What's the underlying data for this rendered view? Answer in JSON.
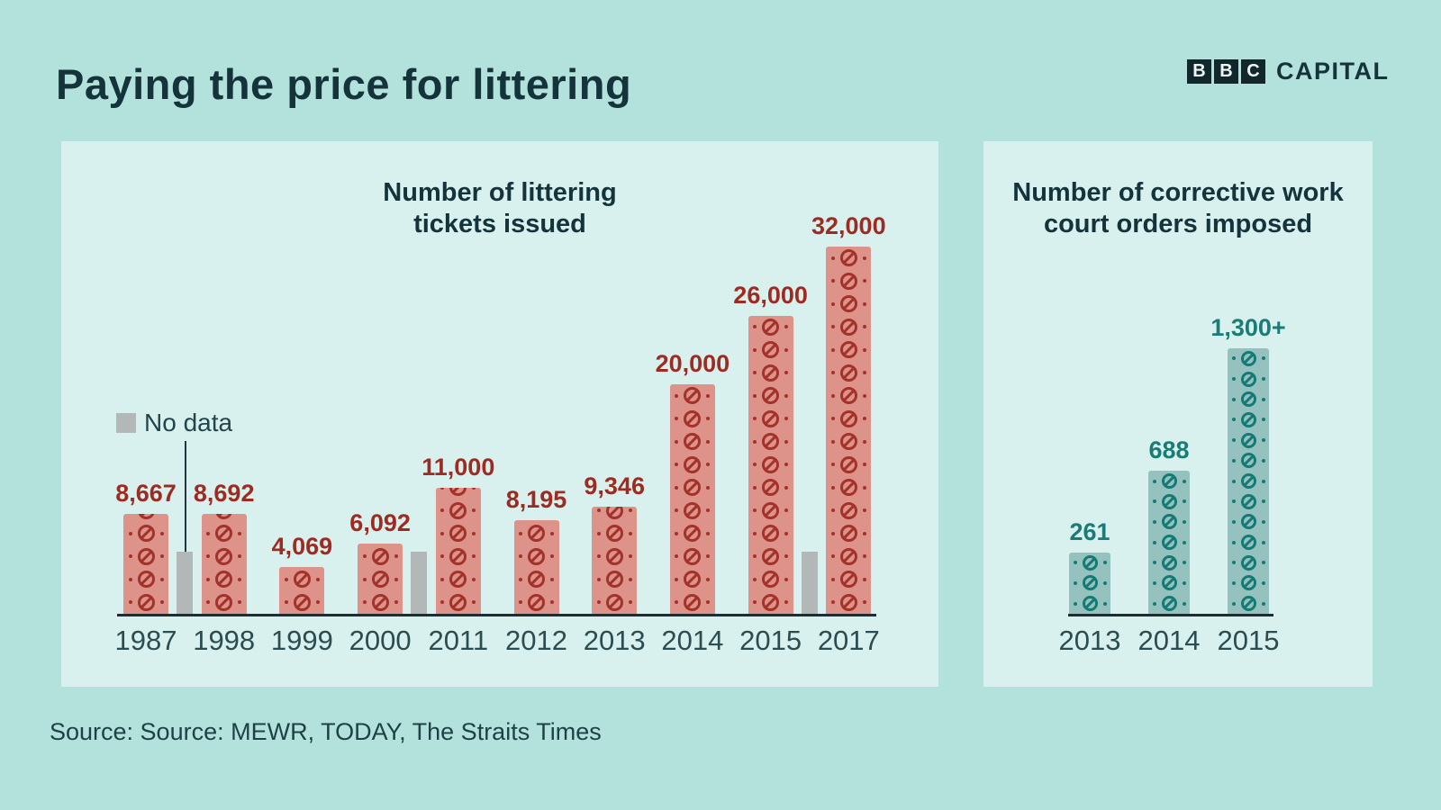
{
  "page": {
    "title": "Paying the price for littering",
    "brand": {
      "blocks": [
        "B",
        "B",
        "C"
      ],
      "name": "CAPITAL"
    },
    "source": "Source: Source: MEWR, TODAY, The Straits Times"
  },
  "chart_data": [
    {
      "type": "bar",
      "title": "Number of littering tickets issued",
      "title_lines": [
        "Number of littering",
        "tickets issued"
      ],
      "categories": [
        "1987",
        "1998",
        "1999",
        "2000",
        "2011",
        "2012",
        "2013",
        "2014",
        "2015",
        "2017"
      ],
      "values": [
        8667,
        8692,
        4069,
        6092,
        11000,
        8195,
        9346,
        20000,
        26000,
        32000
      ],
      "value_labels": [
        "8,667",
        "8,692",
        "4,069",
        "6,092",
        "11,000",
        "8,195",
        "9,346",
        "20,000",
        "26,000",
        "32,000"
      ],
      "unit_per_ticket": 2000,
      "icon": "no-entry-ticket",
      "legend": {
        "label": "No data",
        "color": "#b2b8b7",
        "position": "left-middle"
      },
      "no_data_between": [
        [
          0,
          1
        ],
        [
          3,
          4
        ],
        [
          8,
          9
        ]
      ],
      "colors": {
        "ticket": "#dd928a",
        "icon": "#a2322a",
        "label": "#9e2b22"
      },
      "ylim": [
        0,
        32000
      ],
      "grid": false
    },
    {
      "type": "bar",
      "title": "Number of corrective work court orders imposed",
      "title_lines": [
        "Number of corrective work",
        "court orders imposed"
      ],
      "categories": [
        "2013",
        "2014",
        "2015"
      ],
      "values": [
        261,
        688,
        1300
      ],
      "value_labels": [
        "261",
        "688",
        "1,300+"
      ],
      "unit_per_ticket": 100,
      "icon": "no-entry-ticket",
      "colors": {
        "ticket": "#95c2bf",
        "icon": "#157a74",
        "label": "#1a7b77"
      },
      "ylim": [
        0,
        1300
      ],
      "grid": false
    }
  ],
  "colors": {
    "background": "#b3e2dc",
    "panel": "#d9f1ee",
    "heading": "#14333a",
    "axis": "#1e2d31",
    "year_label": "#2b4c51",
    "no_data": "#b2b8b7",
    "brand_block": "#10282b"
  }
}
